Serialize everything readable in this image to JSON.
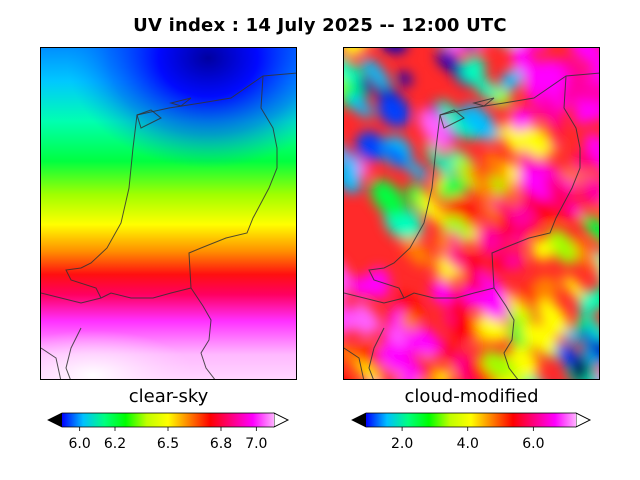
{
  "title": "UV index :  14 July 2025  --  12:00 UTC",
  "panels": [
    {
      "id": "clear-sky",
      "label": "clear-sky",
      "colorbar": {
        "ticks": [
          "6.0",
          "6.2",
          "6.5",
          "6.8",
          "7.0"
        ],
        "range": [
          5.9,
          7.1
        ],
        "extend": "both"
      }
    },
    {
      "id": "cloud-modified",
      "label": "cloud-modified",
      "colorbar": {
        "ticks": [
          "2.0",
          "4.0",
          "6.0"
        ],
        "range": [
          0.9,
          7.3
        ],
        "extend": "both"
      }
    }
  ],
  "colormap": [
    "#000000",
    "#0000ff",
    "#00c0ff",
    "#00ff80",
    "#00ff00",
    "#c0ff00",
    "#ffff00",
    "#ff8000",
    "#ff0000",
    "#ff0080",
    "#ff00ff",
    "#ffb0ff",
    "#ffffff"
  ]
}
